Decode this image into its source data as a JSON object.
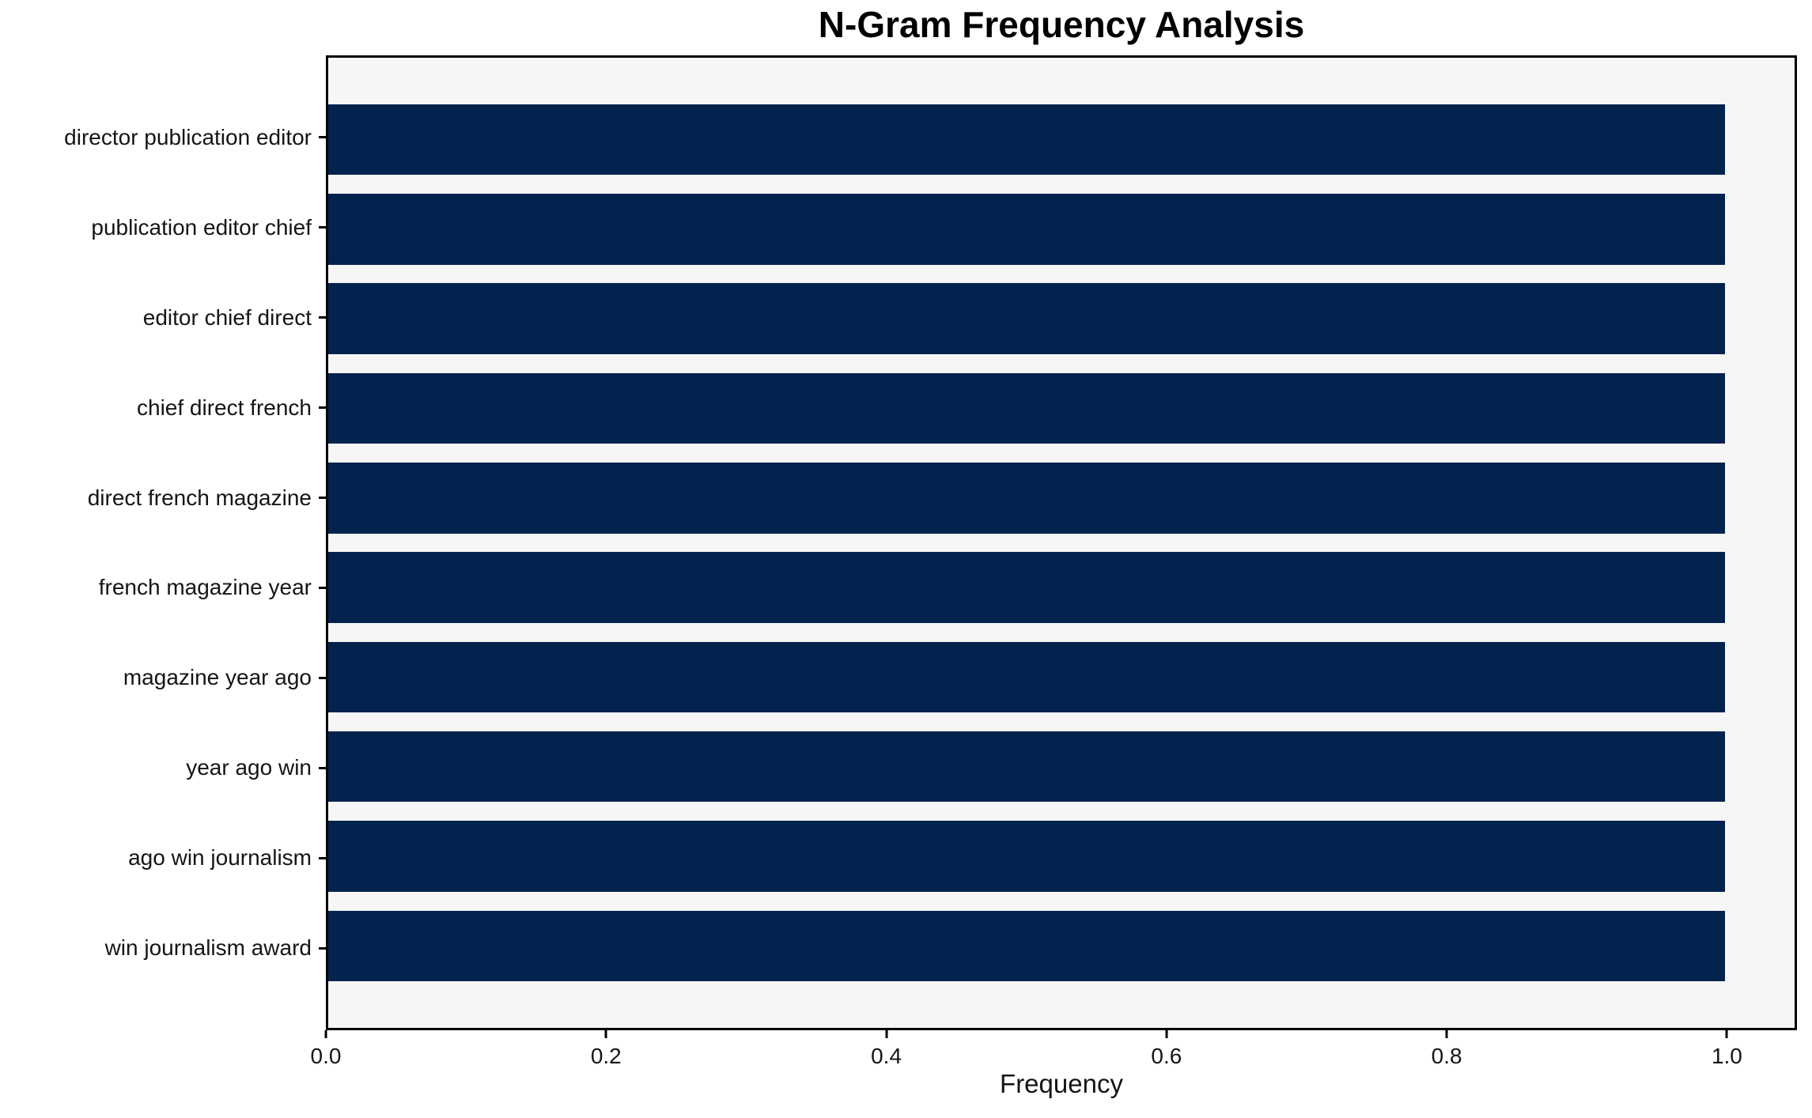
{
  "title": "N-Gram Frequency Analysis",
  "chart_data": {
    "type": "bar",
    "orientation": "horizontal",
    "title": "N-Gram Frequency Analysis",
    "xlabel": "Frequency",
    "ylabel": "",
    "categories": [
      "director publication editor",
      "publication editor chief",
      "editor chief direct",
      "chief direct french",
      "direct french magazine",
      "french magazine year",
      "magazine year ago",
      "year ago win",
      "ago win journalism",
      "win journalism award"
    ],
    "values": [
      1.0,
      1.0,
      1.0,
      1.0,
      1.0,
      1.0,
      1.0,
      1.0,
      1.0,
      1.0
    ],
    "x_ticks": [
      "0.0",
      "0.2",
      "0.4",
      "0.6",
      "0.8",
      "1.0"
    ],
    "x_tick_values": [
      0.0,
      0.2,
      0.4,
      0.6,
      0.8,
      1.0
    ],
    "xlim": [
      0.0,
      1.05
    ],
    "grid": false,
    "legend": "none",
    "bar_color": "#02234e",
    "plot_background": "#f6f6f6",
    "figure_background": "#ffffff",
    "bar_height_fraction": 0.8
  }
}
